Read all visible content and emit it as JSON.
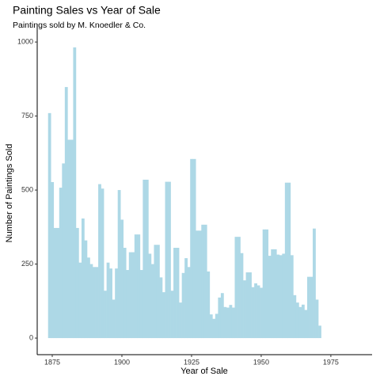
{
  "chart_data": {
    "type": "histogram",
    "title": "Painting Sales vs Year of Sale",
    "subtitle": "Paintings sold by M. Knoedler & Co.",
    "x_label": "Year of Sale",
    "y_label": "Number of Paintings Sold",
    "color": "#add8e6",
    "grid": false,
    "bins": [
      1873.5,
      1874.5,
      1875.5,
      1876.5,
      1877.5,
      1878.5,
      1879.5,
      1880.5,
      1881.5,
      1882.5,
      1883.5,
      1884.5,
      1885.5,
      1886.5,
      1887.5,
      1888.5,
      1889.5,
      1890.5,
      1891.5,
      1892.5,
      1893.5,
      1894.5,
      1895.5,
      1896.5,
      1897.5,
      1898.5,
      1899.5,
      1900.5,
      1901.5,
      1902.5,
      1903.5,
      1904.5,
      1905.5,
      1906.5,
      1907.5,
      1908.5,
      1909.5,
      1910.5,
      1911.5,
      1912.5,
      1913.5,
      1914.5,
      1915.5,
      1916.5,
      1917.5,
      1918.5,
      1919.5,
      1920.5,
      1921.5,
      1922.5,
      1923.5,
      1924.5,
      1925.5,
      1926.5,
      1927.5,
      1928.5,
      1929.5,
      1930.5,
      1931.5,
      1932.5,
      1933.5,
      1934.5,
      1935.5,
      1936.5,
      1937.5,
      1938.5,
      1939.5,
      1940.5,
      1941.5,
      1942.5,
      1943.5,
      1944.5,
      1945.5,
      1946.5,
      1947.5,
      1948.5,
      1949.5,
      1950.5,
      1951.5,
      1952.5,
      1953.5,
      1954.5,
      1955.5,
      1956.5,
      1957.5,
      1958.5,
      1959.5,
      1960.5,
      1961.5,
      1962.5,
      1963.5,
      1964.5,
      1965.5,
      1966.5,
      1967.5,
      1968.5,
      1969.5,
      1970.5,
      1971.5
    ],
    "values": [
      760,
      527,
      372,
      372,
      508,
      590,
      848,
      670,
      670,
      982,
      372,
      255,
      404,
      330,
      272,
      250,
      240,
      240,
      520,
      505,
      160,
      255,
      235,
      130,
      235,
      500,
      400,
      305,
      230,
      290,
      290,
      350,
      350,
      230,
      535,
      535,
      285,
      250,
      315,
      315,
      205,
      155,
      528,
      528,
      160,
      305,
      305,
      120,
      220,
      270,
      240,
      605,
      605,
      363,
      363,
      383,
      383,
      225,
      80,
      65,
      82,
      137,
      152,
      105,
      103,
      112,
      103,
      342,
      342,
      287,
      195,
      222,
      222,
      172,
      185,
      178,
      170,
      367,
      367,
      278,
      300,
      300,
      282,
      280,
      285,
      525,
      525,
      280,
      145,
      120,
      105,
      113,
      95,
      207,
      207,
      370,
      130,
      42
    ],
    "xlim": [
      1869.6,
      1989.8
    ],
    "ylim": [
      -56,
      1035
    ],
    "xticks": [
      1875,
      1900,
      1925,
      1950,
      1975
    ],
    "yticks": [
      0,
      250,
      500,
      750,
      1000
    ]
  }
}
